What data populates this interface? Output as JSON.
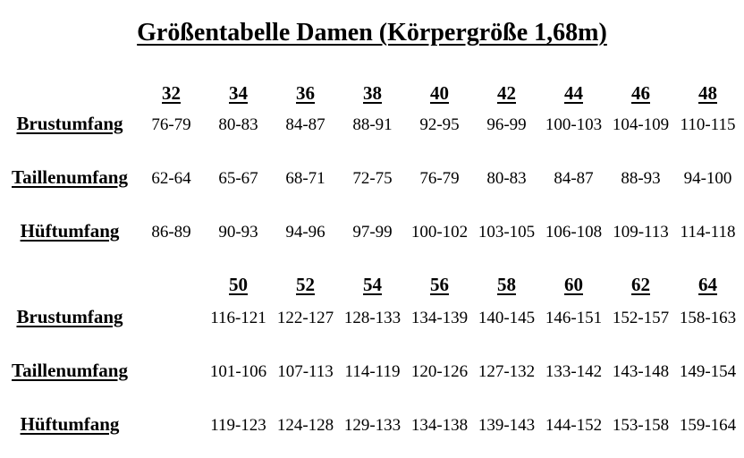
{
  "title": "Größentabelle Damen (Körpergröße 1,68m)",
  "colors": {
    "text": "#000000",
    "background": "#ffffff"
  },
  "upper_table": {
    "sizes": [
      "32",
      "34",
      "36",
      "38",
      "40",
      "42",
      "44",
      "46",
      "48"
    ],
    "rows": [
      {
        "label": "Brustumfang",
        "values": [
          "76-79",
          "80-83",
          "84-87",
          "88-91",
          "92-95",
          "96-99",
          "100-103",
          "104-109",
          "110-115"
        ]
      },
      {
        "label": "Taillenumfang",
        "values": [
          "62-64",
          "65-67",
          "68-71",
          "72-75",
          "76-79",
          "80-83",
          "84-87",
          "88-93",
          "94-100"
        ]
      },
      {
        "label": "Hüftumfang",
        "values": [
          "86-89",
          "90-93",
          "94-96",
          "97-99",
          "100-102",
          "103-105",
          "106-108",
          "109-113",
          "114-118"
        ]
      }
    ]
  },
  "lower_table": {
    "sizes": [
      "50",
      "52",
      "54",
      "56",
      "58",
      "60",
      "62",
      "64"
    ],
    "rows": [
      {
        "label": "Brustumfang",
        "values": [
          "116-121",
          "122-127",
          "128-133",
          "134-139",
          "140-145",
          "146-151",
          "152-157",
          "158-163"
        ]
      },
      {
        "label": "Taillenumfang",
        "values": [
          "101-106",
          "107-113",
          "114-119",
          "120-126",
          "127-132",
          "133-142",
          "143-148",
          "149-154"
        ]
      },
      {
        "label": "Hüftumfang",
        "values": [
          "119-123",
          "124-128",
          "129-133",
          "134-138",
          "139-143",
          "144-152",
          "153-158",
          "159-164"
        ]
      }
    ]
  }
}
